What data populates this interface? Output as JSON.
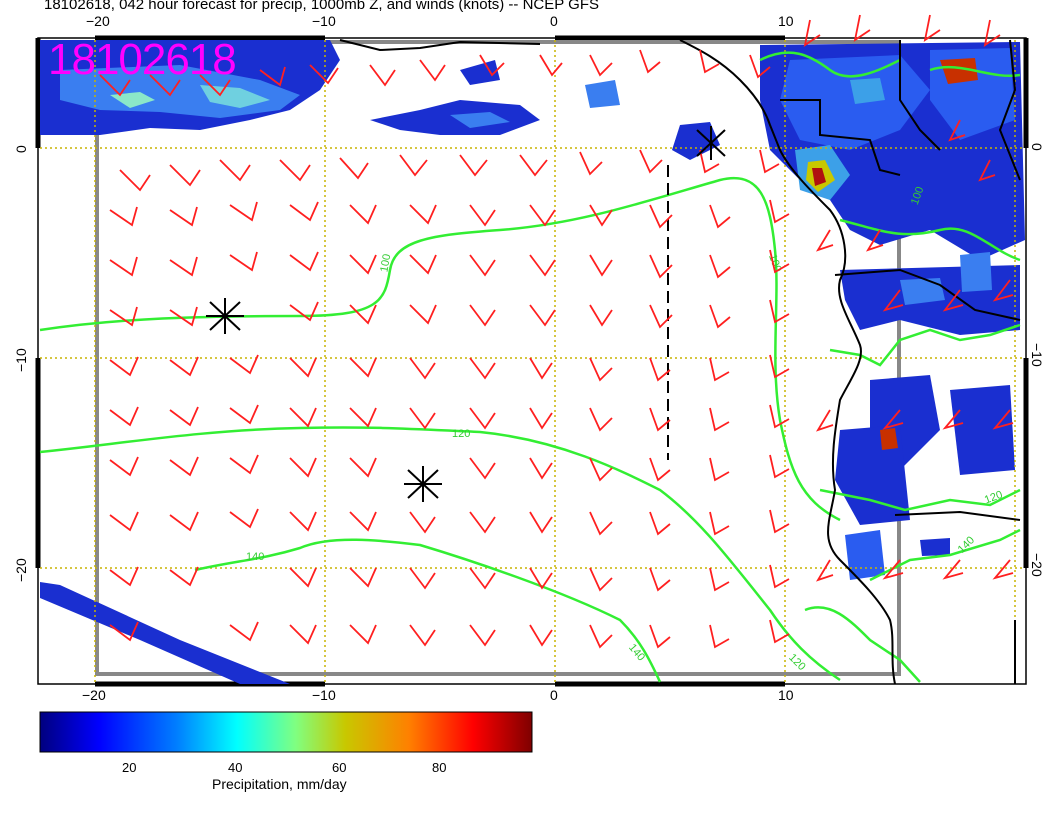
{
  "title": "18102618, 042 hour forecast for precip, 1000mb Z, and winds (knots) -- NCEP GFS",
  "stamp": "18102618",
  "axes": {
    "x_ticks_top": [
      "−20",
      "−10",
      "0",
      "10"
    ],
    "x_ticks_bottom": [
      "−20",
      "−10",
      "0",
      "10"
    ],
    "y_ticks_left": [
      "0",
      "−10",
      "−20"
    ],
    "y_ticks_right": [
      "0",
      "−10",
      "−20"
    ]
  },
  "contour_labels": [
    "100",
    "100",
    "100",
    "120",
    "120",
    "120",
    "140",
    "140",
    "140"
  ],
  "colorbar": {
    "label": "Precipitation, mm/day",
    "ticks": [
      "20",
      "40",
      "60",
      "80"
    ],
    "colors": [
      "#00007f",
      "#0000ff",
      "#0080ff",
      "#00ffff",
      "#80ff80",
      "#c8c800",
      "#ff8000",
      "#ff0000",
      "#7f0000"
    ]
  },
  "layers": {
    "precip_shading": "blue-to-red",
    "height_contours_color": "#33ee33",
    "wind_barbs_color": "#ff0000",
    "coastline_color": "#000000",
    "grid_color": "#ccaa00"
  }
}
